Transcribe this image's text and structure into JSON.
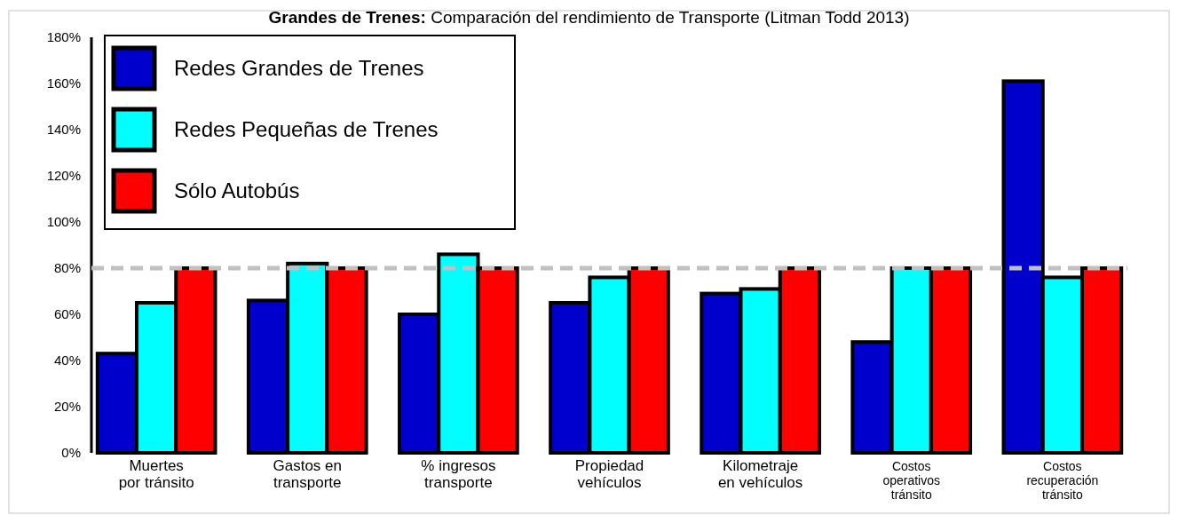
{
  "chart_data": {
    "type": "bar",
    "title": "Grandes de Trenes: Comparación del rendimiento de Transporte (Litman Todd 2013)",
    "categories": [
      "Muertes\npor tránsito",
      "Gastos en\ntransporte",
      "% ingresos\ntransporte",
      "Propiedad\nvehículos",
      "Kilometraje\nen vehículos",
      "Costos\noperativos\ntránsito",
      "Costos\nrecuperación\ntránsito"
    ],
    "series": [
      {
        "name": "Redes Grandes de Trenes",
        "color": "#0000cc",
        "values": [
          43,
          66,
          60,
          65,
          69,
          48,
          161
        ]
      },
      {
        "name": "Redes Pequeñas de Trenes",
        "color": "#00ffff",
        "values": [
          65,
          82,
          86,
          76,
          71,
          80,
          76
        ]
      },
      {
        "name": "Sólo Autobús",
        "color": "#ff0000",
        "values": [
          80,
          80,
          80,
          80,
          80,
          80,
          80
        ]
      }
    ],
    "ylim": [
      0,
      180
    ],
    "yticks": [
      {
        "value": 0,
        "label": "0%"
      },
      {
        "value": 20,
        "label": "20%"
      },
      {
        "value": 40,
        "label": "40%"
      },
      {
        "value": 60,
        "label": "60%"
      },
      {
        "value": 80,
        "label": "80%"
      },
      {
        "value": 100,
        "label": "100%"
      },
      {
        "value": 120,
        "label": "120%"
      },
      {
        "value": 140,
        "label": "140%"
      },
      {
        "value": 160,
        "label": "160%"
      },
      {
        "value": 180,
        "label": "180%"
      }
    ],
    "ref_lines": [
      {
        "axis": "y",
        "value": 80,
        "color": "#c0c0c0",
        "line_style": "dashed"
      }
    ],
    "grid": false,
    "legend": "top left"
  }
}
